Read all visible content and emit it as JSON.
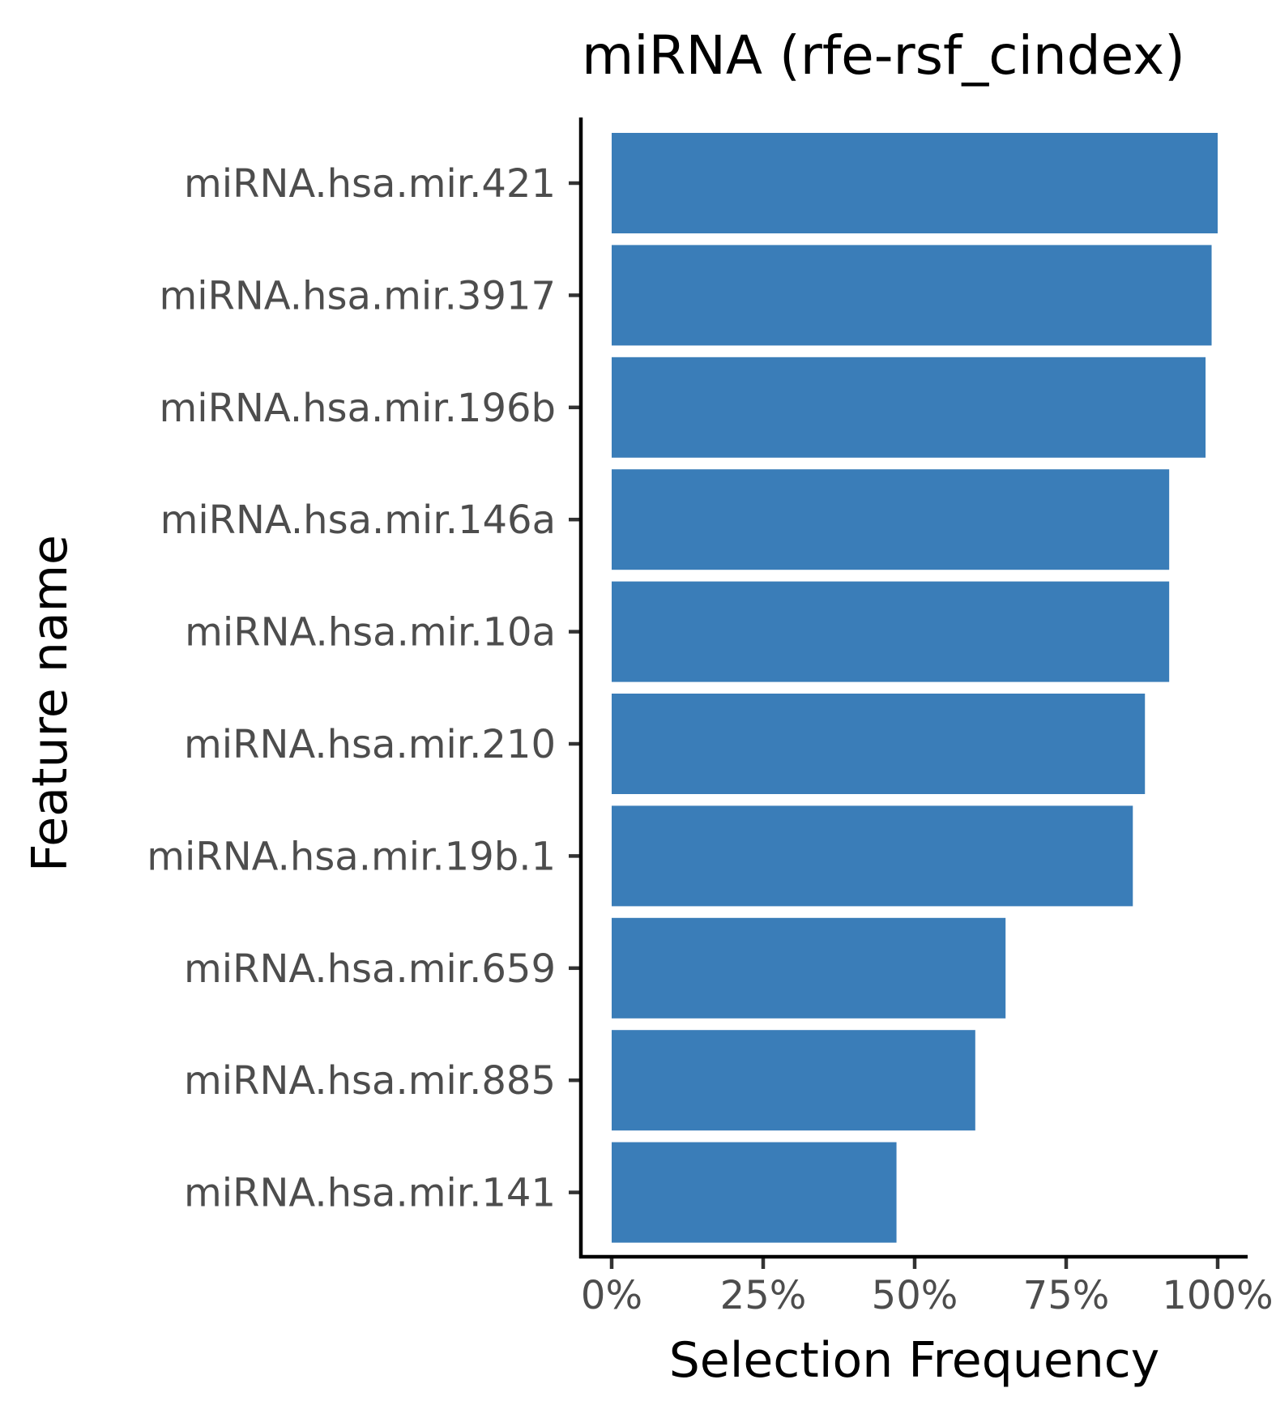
{
  "chart_data": {
    "type": "bar",
    "orientation": "horizontal",
    "title": "miRNA (rfe-rsf_cindex)",
    "xlabel": "Selection Frequency",
    "ylabel": "Feature name",
    "xlim": [
      -0.05,
      1.05
    ],
    "x_ticks": [
      {
        "value": 0,
        "label": "0%"
      },
      {
        "value": 0.25,
        "label": "25%"
      },
      {
        "value": 0.5,
        "label": "50%"
      },
      {
        "value": 0.75,
        "label": "75%"
      },
      {
        "value": 1.0,
        "label": "100%"
      }
    ],
    "categories": [
      "miRNA.hsa.mir.421",
      "miRNA.hsa.mir.3917",
      "miRNA.hsa.mir.196b",
      "miRNA.hsa.mir.146a",
      "miRNA.hsa.mir.10a",
      "miRNA.hsa.mir.210",
      "miRNA.hsa.mir.19b.1",
      "miRNA.hsa.mir.659",
      "miRNA.hsa.mir.885",
      "miRNA.hsa.mir.141"
    ],
    "values": [
      1.0,
      0.99,
      0.98,
      0.92,
      0.92,
      0.88,
      0.86,
      0.65,
      0.6,
      0.47
    ],
    "bar_color": "#3a7db8",
    "grid": false,
    "legend": "none"
  }
}
